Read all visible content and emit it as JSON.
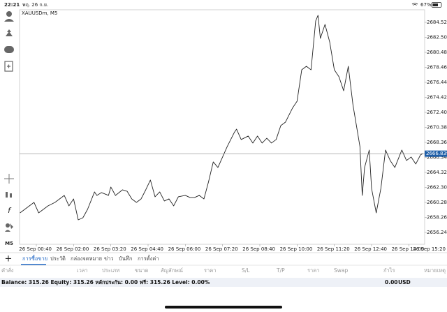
{
  "status_bar": {
    "time": "22:21",
    "date": "พฤ. 26 ก.ย.",
    "battery": "67%"
  },
  "chart_data": {
    "type": "line",
    "title": "XAUUSDm, M5",
    "color": "#222222",
    "x": [
      5,
      15,
      25,
      35,
      45,
      55,
      65,
      80,
      90,
      100,
      110,
      120,
      130,
      140,
      150,
      165,
      170,
      180,
      195,
      200,
      210,
      225,
      235,
      245,
      255,
      265,
      275,
      285,
      295,
      305,
      315,
      325,
      335,
      345,
      360,
      370,
      380,
      390,
      400,
      410,
      420,
      430,
      440,
      450,
      465,
      470,
      480,
      495,
      505,
      515,
      525,
      535,
      545,
      555,
      565,
      575,
      590,
      600,
      610,
      620,
      630,
      640,
      645,
      650,
      660,
      670,
      680,
      690,
      700,
      710,
      720,
      735,
      740,
      745,
      755,
      760,
      770,
      780,
      790,
      800,
      810,
      825,
      835,
      845,
      855,
      865,
      870
    ],
    "values": [
      2658.87,
      2659.34,
      2659.81,
      2660.28,
      2658.87,
      2659.34,
      2659.81,
      2660.28,
      2660.75,
      2661.22,
      2659.81,
      2660.75,
      2657.93,
      2658.21,
      2659.34,
      2661.69,
      2661.22,
      2661.6,
      2661.22,
      2662.35,
      2661.22,
      2661.97,
      2661.78,
      2660.75,
      2660.28,
      2660.75,
      2661.97,
      2663.29,
      2661.03,
      2661.69,
      2660.47,
      2660.75,
      2659.81,
      2661.03,
      2661.22,
      2660.94,
      2660.94,
      2661.22,
      2660.75,
      2663.1,
      2665.73,
      2664.98,
      2666.39,
      2667.8,
      2669.67,
      2670.14,
      2668.74,
      2669.21,
      2668.27,
      2669.21,
      2668.27,
      2668.92,
      2668.27,
      2668.74,
      2670.61,
      2671.08,
      2672.96,
      2673.9,
      2678.13,
      2678.6,
      2678.13,
      2684.71,
      2685.46,
      2682.36,
      2684.24,
      2681.89,
      2678.13,
      2677.19,
      2675.31,
      2678.6,
      2673.43,
      2667.8,
      2661.22,
      2664.98,
      2667.33,
      2662.16,
      2658.87,
      2662.16,
      2667.33,
      2665.92,
      2664.98,
      2667.33,
      2665.92,
      2666.39,
      2665.45,
      2666.67,
      2666.86
    ],
    "xlim": [
      4,
      874
    ],
    "xticks": [
      {
        "value": 40,
        "label": "26 Sep 00:40"
      },
      {
        "value": 120,
        "label": "26 Sep 02:00"
      },
      {
        "value": 200,
        "label": "26 Sep 03:20"
      },
      {
        "value": 280,
        "label": "26 Sep 04:40"
      },
      {
        "value": 360,
        "label": "26 Sep 06:00"
      },
      {
        "value": 440,
        "label": "26 Sep 07:20"
      },
      {
        "value": 520,
        "label": "26 Sep 08:40"
      },
      {
        "value": 600,
        "label": "26 Sep 10:00"
      },
      {
        "value": 680,
        "label": "26 Sep 11:20"
      },
      {
        "value": 760,
        "label": "26 Sep 12:40"
      },
      {
        "value": 840,
        "label": "26 Sep 14:00"
      },
      {
        "value": 920,
        "label": "26 Sep 15:20"
      }
    ],
    "ylim": [
      2654.64,
      2686.21
    ],
    "yticks": [
      {
        "value": 2684.52,
        "label": "2684.520"
      },
      {
        "value": 2682.5,
        "label": "2682.500"
      },
      {
        "value": 2680.48,
        "label": "2680.480"
      },
      {
        "value": 2678.46,
        "label": "2678.460"
      },
      {
        "value": 2676.44,
        "label": "2676.440"
      },
      {
        "value": 2674.42,
        "label": "2674.420"
      },
      {
        "value": 2672.4,
        "label": "2672.400"
      },
      {
        "value": 2670.38,
        "label": "2670.380"
      },
      {
        "value": 2668.36,
        "label": "2668.360"
      },
      {
        "value": 2666.34,
        "label": "2666.340"
      },
      {
        "value": 2664.32,
        "label": "2664.320"
      },
      {
        "value": 2662.3,
        "label": "2662.300"
      },
      {
        "value": 2660.28,
        "label": "2660.280"
      },
      {
        "value": 2658.26,
        "label": "2658.260"
      },
      {
        "value": 2656.24,
        "label": "2656.240"
      }
    ],
    "current_price": {
      "value": 2666.839,
      "label": "2666.839"
    }
  },
  "toolbar": {
    "timeframe": "M5"
  },
  "tabs": [
    "การซื้อขาย",
    "ประวัติ",
    "กล่องจดหมาย",
    "ข่าว",
    "บันทึก",
    "การตั้งค่า"
  ],
  "columns": [
    "คำสั่ง",
    "เวลา",
    "ประเภท",
    "ขนาด",
    "สัญลักษณ์",
    "ราคา",
    "S/L",
    "T/P",
    "ราคา",
    "Swap",
    "กำไร",
    "หมายเหตุ"
  ],
  "account": {
    "summary": "Balance: 315.26 Equity: 315.26 หลักประกัน: 0.00 ฟรี: 315.26 Level: 0.00%",
    "profit": "0.00",
    "currency": "USD"
  }
}
